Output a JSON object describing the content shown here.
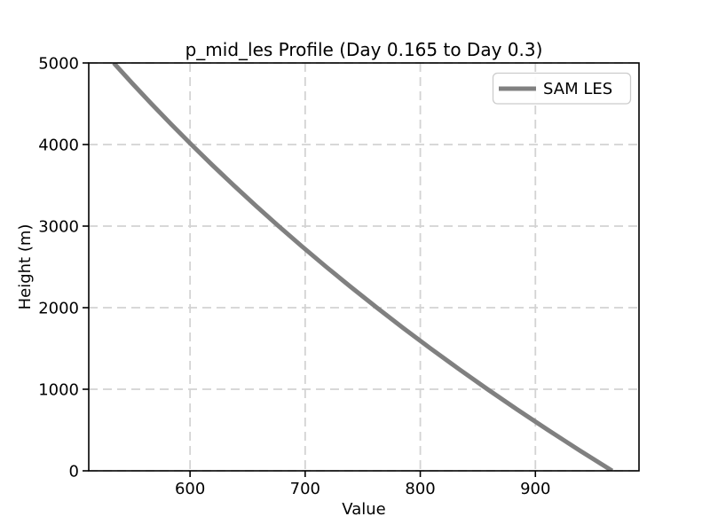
{
  "chart_data": {
    "type": "line",
    "title": "p_mid_les Profile (Day 0.165 to Day 0.3)",
    "xlabel": "Value",
    "ylabel": "Height (m)",
    "xlim": [
      512,
      990
    ],
    "ylim": [
      0,
      5000
    ],
    "xticks": [
      600,
      700,
      800,
      900
    ],
    "yticks": [
      0,
      1000,
      2000,
      3000,
      4000,
      5000
    ],
    "grid": true,
    "grid_style": "dashed",
    "grid_color": "#d3d3d3",
    "legend_position": "upper right",
    "series": [
      {
        "name": "SAM LES",
        "color": "#808080",
        "linewidth": 5,
        "x": [
          966.7,
          938.4,
          911.0,
          884.3,
          858.4,
          833.3,
          808.9,
          785.2,
          762.3,
          740.0,
          718.3,
          697.3,
          676.9,
          657.1,
          637.9,
          619.2,
          601.1,
          583.5,
          566.4,
          549.8,
          533.7
        ],
        "y": [
          0,
          250,
          500,
          750,
          1000,
          1250,
          1500,
          1750,
          2000,
          2250,
          2500,
          2750,
          3000,
          3250,
          3500,
          3750,
          4000,
          4250,
          4500,
          4750,
          5000
        ]
      }
    ],
    "colors": {
      "spine": "#000000",
      "background": "#ffffff",
      "legend_border": "#cccccc"
    }
  }
}
